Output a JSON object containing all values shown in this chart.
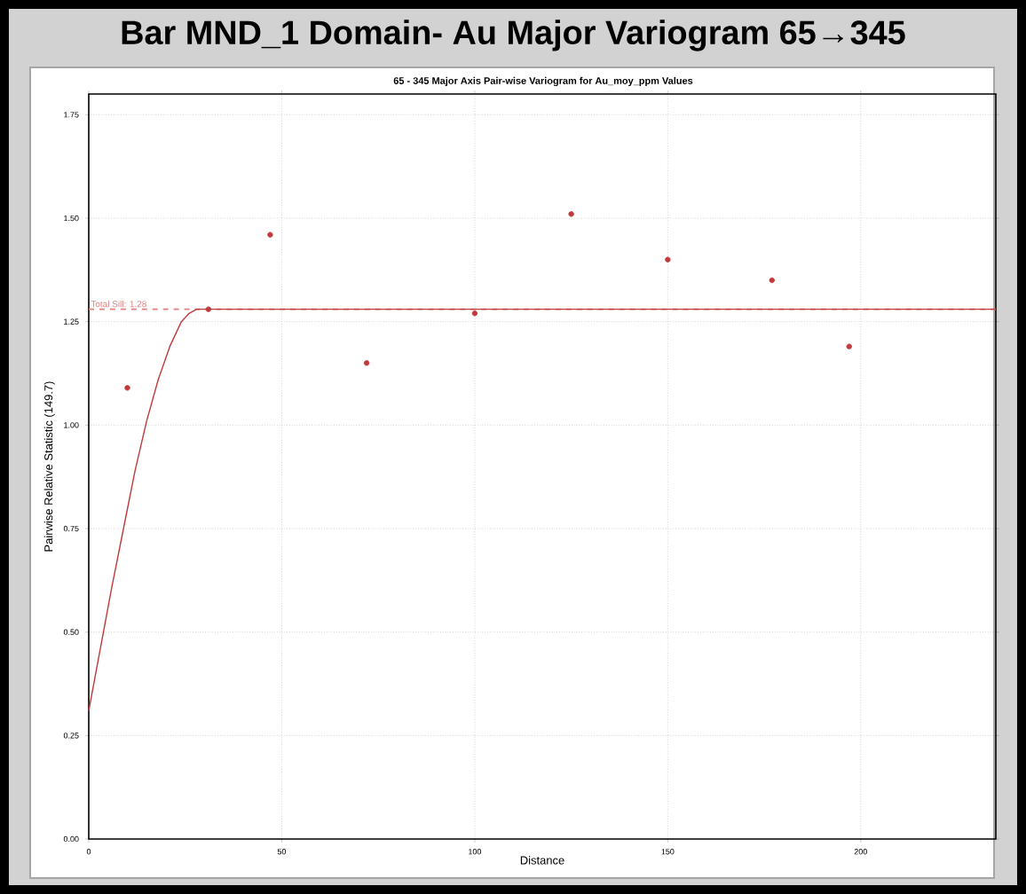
{
  "chart_data": {
    "type": "scatter",
    "title": "Bar MND_1 Domain- Au Major Variogram 65→345",
    "subtitle": "65 - 345 Major Axis Pair-wise Variogram for Au_moy_ppm Values",
    "xlabel": "Distance",
    "ylabel": "Pairwise Relative Statistic (149.7)",
    "xlim": [
      0,
      235
    ],
    "ylim": [
      0,
      1.8
    ],
    "xticks": [
      0,
      50,
      100,
      150,
      200
    ],
    "yticks": [
      {
        "value": 0,
        "label": "0.00"
      },
      {
        "value": 0.25,
        "label": "0.25"
      },
      {
        "value": 0.5,
        "label": "0.50"
      },
      {
        "value": 0.75,
        "label": "0.75"
      },
      {
        "value": 1.0,
        "label": "1.00"
      },
      {
        "value": 1.25,
        "label": "1.25"
      },
      {
        "value": 1.5,
        "label": "1.50"
      },
      {
        "value": 1.75,
        "label": "1.75"
      }
    ],
    "grid": true,
    "series": [
      {
        "marker": "circle",
        "color": "#c0393b",
        "x": [
          10,
          31,
          47,
          72,
          100,
          125,
          150,
          177,
          197
        ],
        "values": [
          1.09,
          1.28,
          1.46,
          1.15,
          1.27,
          1.51,
          1.4,
          1.35,
          1.19
        ]
      },
      {
        "type": "line",
        "marker": "none",
        "color": "#c0393b",
        "x": [
          0,
          3,
          6,
          9,
          12,
          15,
          18,
          21,
          24,
          26,
          28,
          235
        ],
        "values": [
          0.31,
          0.46,
          0.61,
          0.75,
          0.89,
          1.01,
          1.11,
          1.19,
          1.25,
          1.27,
          1.28,
          1.28
        ]
      }
    ],
    "ref_lines": [
      {
        "axis": "y",
        "value": 1.28,
        "label": "Total Sill: 1.28",
        "color": "#e08080",
        "line_style": "dashed"
      }
    ]
  }
}
